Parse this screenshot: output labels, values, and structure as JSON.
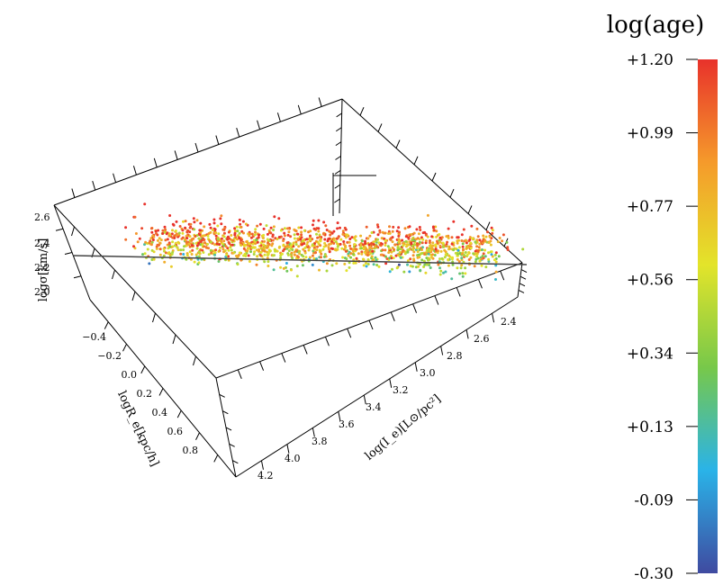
{
  "chart_data": {
    "type": "scatter",
    "projection": "3d",
    "title": "",
    "axes": {
      "x": {
        "label": "logR_e[kpc/h]",
        "ticks": [
          "−0.4",
          "−0.2",
          "0.0",
          "0.2",
          "0.4",
          "0.6",
          "0.8"
        ],
        "range": [
          -0.5,
          0.9
        ]
      },
      "y": {
        "label": "log(I_e)[L⊙/pc²]",
        "ticks": [
          "2.4",
          "2.6",
          "2.8",
          "3.0",
          "3.2",
          "3.4",
          "3.6",
          "3.8",
          "4.0",
          "4.2"
        ],
        "range": [
          2.3,
          4.3
        ]
      },
      "z": {
        "label": "logσ[km/s]",
        "ticks": [
          "2.0",
          "2.2",
          "2.4",
          "2.6"
        ],
        "range": [
          1.95,
          2.65
        ]
      }
    },
    "points_description_count": 1500,
    "point_cloud": {
      "logRe_center": 0.15,
      "logRe_spread": 0.35,
      "logIe_center": 3.2,
      "logIe_spread": 0.5,
      "logsigma_center": 2.3,
      "logsigma_spread": 0.05
    },
    "fit_line": {
      "from": {
        "logRe": -0.45,
        "logIe": 2.45,
        "logsigma": 2.2
      },
      "to": {
        "logRe": 0.75,
        "logIe": 4.0,
        "logsigma": 2.45
      }
    },
    "colorbar": {
      "title": "log(age)",
      "ticks": [
        "+1.20",
        "+0.99",
        "+0.77",
        "+0.56",
        "+0.34",
        "+0.13",
        "-0.09",
        "-0.30"
      ],
      "range": [
        -0.3,
        1.2
      ],
      "colors": [
        "#3f4aa0",
        "#2ab3e8",
        "#77c84a",
        "#e3e42a",
        "#f59a2b",
        "#e8322b"
      ]
    },
    "grid": false,
    "legend": "none"
  }
}
